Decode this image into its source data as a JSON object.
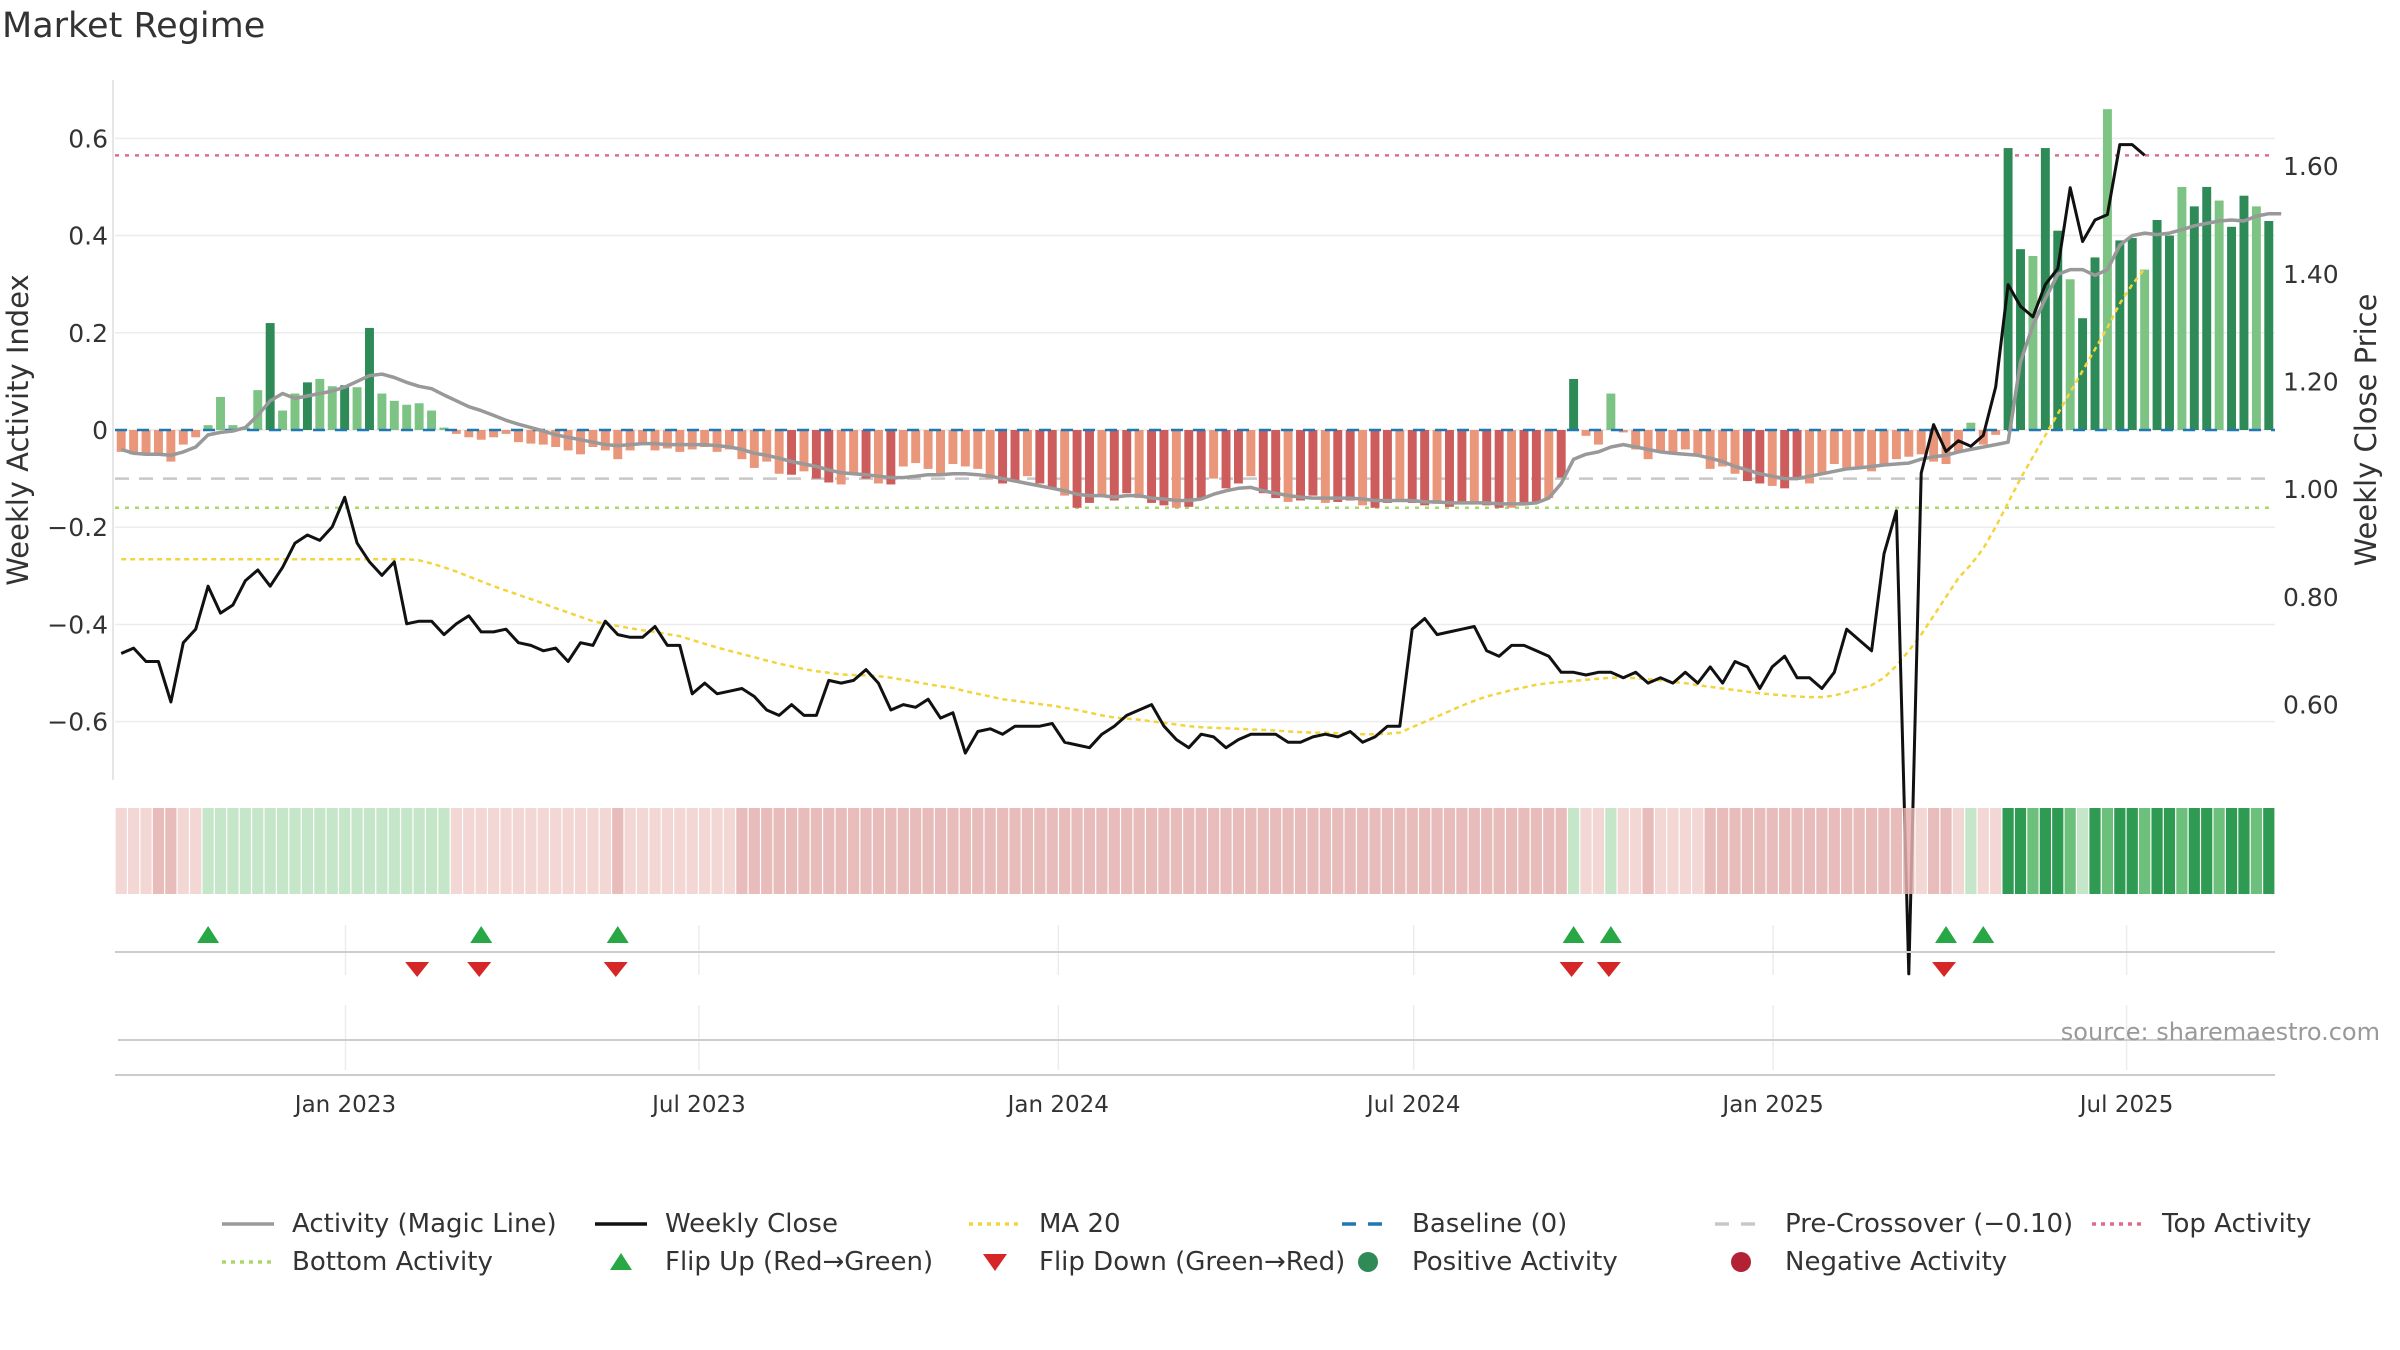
{
  "title": "Market Regime",
  "source": "source: sharemaestro.com",
  "colors": {
    "strong_green": "#2e8b57",
    "light_green": "#7dc383",
    "strong_red": "#cd5c5c",
    "light_red": "#e9967a",
    "magic_line": "#999999",
    "close_line": "#111111",
    "ma_line": "#f2d53c",
    "baseline": "#1f77b4",
    "pre_crossover": "#c8c8c8",
    "top_activity": "#e06c8c",
    "bottom_activity": "#a8d86a",
    "flip_up": "#28a745",
    "flip_down": "#d62728"
  },
  "chart_data": {
    "type": "bar",
    "title": "Market Regime",
    "xlabel": "",
    "ylabel": "Weekly Activity Index",
    "y2label": "Weekly Close Price",
    "ylim": [
      -0.72,
      0.72
    ],
    "y2lim": [
      0.46,
      1.76
    ],
    "yticks": [
      -0.6,
      -0.4,
      -0.2,
      0,
      0.2,
      0.4,
      0.6
    ],
    "ytick_labels": [
      "−0.6",
      "−0.4",
      "−0.2",
      "0",
      "0.2",
      "0.4",
      "0.6"
    ],
    "y2ticks": [
      0.6,
      0.8,
      1.0,
      1.2,
      1.4,
      1.6
    ],
    "y2tick_labels": [
      "0.60",
      "0.80",
      "1.00",
      "1.20",
      "1.40",
      "1.60"
    ],
    "date_range": [
      "2022-09-05",
      "2025-09-15"
    ],
    "xtick_dates": [
      "2023-01-01",
      "2023-07-01",
      "2024-01-01",
      "2024-07-01",
      "2025-01-01",
      "2025-07-01"
    ],
    "xtick_labels": [
      "Jan 2023",
      "Jul 2023",
      "Jan 2024",
      "Jul 2024",
      "Jan 2025",
      "Jul 2025"
    ],
    "top_activity": 0.565,
    "bottom_activity": -0.16,
    "pre_crossover": -0.1,
    "baseline": 0,
    "grid": true,
    "legend_position": "bottom",
    "activity": [
      -0.045,
      -0.05,
      -0.048,
      -0.052,
      -0.065,
      -0.03,
      -0.015,
      0.01,
      0.068,
      0.01,
      0.005,
      0.082,
      0.22,
      0.04,
      0.075,
      0.098,
      0.105,
      0.09,
      0.092,
      0.088,
      0.21,
      0.075,
      0.06,
      0.052,
      0.055,
      0.04,
      0.005,
      -0.008,
      -0.015,
      -0.02,
      -0.015,
      -0.008,
      -0.025,
      -0.028,
      -0.03,
      -0.035,
      -0.042,
      -0.05,
      -0.035,
      -0.042,
      -0.06,
      -0.042,
      -0.03,
      -0.042,
      -0.038,
      -0.045,
      -0.04,
      -0.035,
      -0.045,
      -0.04,
      -0.06,
      -0.078,
      -0.065,
      -0.09,
      -0.092,
      -0.085,
      -0.1,
      -0.108,
      -0.112,
      -0.09,
      -0.1,
      -0.11,
      -0.112,
      -0.075,
      -0.068,
      -0.08,
      -0.09,
      -0.07,
      -0.075,
      -0.08,
      -0.1,
      -0.11,
      -0.105,
      -0.095,
      -0.11,
      -0.12,
      -0.135,
      -0.16,
      -0.15,
      -0.135,
      -0.145,
      -0.13,
      -0.14,
      -0.15,
      -0.155,
      -0.16,
      -0.158,
      -0.14,
      -0.1,
      -0.12,
      -0.11,
      -0.095,
      -0.13,
      -0.14,
      -0.148,
      -0.145,
      -0.135,
      -0.15,
      -0.148,
      -0.145,
      -0.155,
      -0.16,
      -0.15,
      -0.145,
      -0.15,
      -0.155,
      -0.152,
      -0.158,
      -0.15,
      -0.15,
      -0.155,
      -0.16,
      -0.16,
      -0.155,
      -0.15,
      -0.14,
      -0.098,
      0.105,
      -0.012,
      -0.03,
      0.075,
      -0.005,
      -0.04,
      -0.06,
      -0.045,
      -0.048,
      -0.04,
      -0.05,
      -0.08,
      -0.075,
      -0.09,
      -0.105,
      -0.11,
      -0.115,
      -0.12,
      -0.098,
      -0.11,
      -0.088,
      -0.07,
      -0.078,
      -0.08,
      -0.085,
      -0.075,
      -0.06,
      -0.055,
      -0.05,
      -0.065,
      -0.07,
      -0.045,
      0.015,
      -0.03,
      -0.01,
      0.58,
      0.372,
      0.358,
      0.58,
      0.41,
      0.31,
      0.23,
      0.355,
      0.66,
      0.39,
      0.395,
      0.33,
      0.432,
      0.4,
      0.5,
      0.46,
      0.5,
      0.472,
      0.418,
      0.482,
      0.46,
      0.43
    ],
    "magic_line": [
      -0.04,
      -0.048,
      -0.05,
      -0.05,
      -0.052,
      -0.045,
      -0.035,
      -0.01,
      -0.005,
      -0.002,
      0.005,
      0.03,
      0.06,
      0.075,
      0.065,
      0.07,
      0.075,
      0.08,
      0.088,
      0.1,
      0.112,
      0.115,
      0.108,
      0.098,
      0.09,
      0.085,
      0.072,
      0.06,
      0.048,
      0.04,
      0.03,
      0.02,
      0.012,
      0.005,
      -0.002,
      -0.01,
      -0.015,
      -0.02,
      -0.025,
      -0.03,
      -0.032,
      -0.03,
      -0.028,
      -0.028,
      -0.03,
      -0.03,
      -0.03,
      -0.03,
      -0.032,
      -0.035,
      -0.04,
      -0.048,
      -0.052,
      -0.058,
      -0.065,
      -0.07,
      -0.075,
      -0.082,
      -0.088,
      -0.09,
      -0.092,
      -0.095,
      -0.098,
      -0.098,
      -0.095,
      -0.092,
      -0.092,
      -0.09,
      -0.09,
      -0.092,
      -0.095,
      -0.1,
      -0.105,
      -0.11,
      -0.115,
      -0.12,
      -0.125,
      -0.132,
      -0.135,
      -0.135,
      -0.138,
      -0.135,
      -0.135,
      -0.14,
      -0.142,
      -0.145,
      -0.145,
      -0.142,
      -0.132,
      -0.125,
      -0.12,
      -0.118,
      -0.125,
      -0.13,
      -0.135,
      -0.138,
      -0.14,
      -0.14,
      -0.14,
      -0.14,
      -0.142,
      -0.145,
      -0.145,
      -0.145,
      -0.145,
      -0.148,
      -0.148,
      -0.15,
      -0.15,
      -0.15,
      -0.15,
      -0.152,
      -0.152,
      -0.152,
      -0.15,
      -0.14,
      -0.11,
      -0.06,
      -0.05,
      -0.045,
      -0.035,
      -0.03,
      -0.035,
      -0.04,
      -0.045,
      -0.048,
      -0.05,
      -0.052,
      -0.058,
      -0.065,
      -0.075,
      -0.082,
      -0.09,
      -0.095,
      -0.1,
      -0.1,
      -0.095,
      -0.09,
      -0.085,
      -0.08,
      -0.078,
      -0.075,
      -0.072,
      -0.07,
      -0.068,
      -0.06,
      -0.055,
      -0.052,
      -0.045,
      -0.04,
      -0.035,
      -0.03,
      -0.025,
      0.14,
      0.215,
      0.27,
      0.32,
      0.33,
      0.33,
      0.318,
      0.33,
      0.38,
      0.4,
      0.405,
      0.402,
      0.405,
      0.412,
      0.42,
      0.425,
      0.43,
      0.432,
      0.43,
      0.44,
      0.445,
      0.445
    ],
    "weekly_close": [
      0.695,
      0.705,
      0.68,
      0.68,
      0.605,
      0.715,
      0.74,
      0.82,
      0.77,
      0.785,
      0.83,
      0.85,
      0.82,
      0.855,
      0.9,
      0.915,
      0.905,
      0.93,
      0.985,
      0.9,
      0.865,
      0.84,
      0.865,
      0.75,
      0.755,
      0.755,
      0.73,
      0.75,
      0.765,
      0.735,
      0.735,
      0.74,
      0.715,
      0.71,
      0.7,
      0.705,
      0.68,
      0.715,
      0.71,
      0.755,
      0.73,
      0.725,
      0.725,
      0.745,
      0.71,
      0.71,
      0.62,
      0.64,
      0.62,
      0.625,
      0.63,
      0.615,
      0.59,
      0.58,
      0.6,
      0.58,
      0.58,
      0.645,
      0.64,
      0.645,
      0.665,
      0.64,
      0.59,
      0.6,
      0.595,
      0.61,
      0.575,
      0.585,
      0.51,
      0.55,
      0.555,
      0.545,
      0.56,
      0.56,
      0.56,
      0.565,
      0.53,
      0.525,
      0.52,
      0.545,
      0.56,
      0.58,
      0.59,
      0.6,
      0.56,
      0.535,
      0.52,
      0.545,
      0.54,
      0.52,
      0.535,
      0.545,
      0.545,
      0.545,
      0.53,
      0.53,
      0.54,
      0.545,
      0.54,
      0.55,
      0.53,
      0.54,
      0.56,
      0.56,
      0.74,
      0.76,
      0.73,
      0.735,
      0.74,
      0.745,
      0.7,
      0.69,
      0.71,
      0.71,
      0.7,
      0.69,
      0.66,
      0.66,
      0.655,
      0.66,
      0.66,
      0.65,
      0.66,
      0.64,
      0.65,
      0.64,
      0.66,
      0.64,
      0.67,
      0.64,
      0.68,
      0.67,
      0.63,
      0.67,
      0.69,
      0.65,
      0.65,
      0.63,
      0.66,
      0.74,
      0.72,
      0.7,
      0.88,
      0.96,
      0.1,
      1.03,
      1.12,
      1.07,
      1.09,
      1.08,
      1.1,
      1.19,
      1.38,
      1.34,
      1.32,
      1.38,
      1.41,
      1.56,
      1.46,
      1.5,
      1.51,
      1.64,
      1.64,
      1.62
    ],
    "ma20": [
      0.87,
      0.87,
      0.87,
      0.87,
      0.87,
      0.87,
      0.87,
      0.87,
      0.87,
      0.87,
      0.87,
      0.87,
      0.87,
      0.87,
      0.87,
      0.87,
      0.87,
      0.87,
      0.87,
      0.87,
      0.87,
      0.87,
      0.87,
      0.87,
      0.868,
      0.862,
      0.855,
      0.847,
      0.838,
      0.829,
      0.82,
      0.812,
      0.804,
      0.796,
      0.788,
      0.779,
      0.771,
      0.763,
      0.755,
      0.75,
      0.746,
      0.742,
      0.738,
      0.735,
      0.731,
      0.727,
      0.72,
      0.713,
      0.706,
      0.7,
      0.694,
      0.688,
      0.682,
      0.676,
      0.671,
      0.666,
      0.662,
      0.659,
      0.656,
      0.655,
      0.654,
      0.653,
      0.65,
      0.646,
      0.642,
      0.638,
      0.634,
      0.631,
      0.625,
      0.62,
      0.615,
      0.61,
      0.607,
      0.604,
      0.601,
      0.598,
      0.594,
      0.59,
      0.585,
      0.58,
      0.576,
      0.574,
      0.572,
      0.569,
      0.566,
      0.563,
      0.56,
      0.558,
      0.557,
      0.556,
      0.555,
      0.554,
      0.553,
      0.552,
      0.55,
      0.549,
      0.548,
      0.548,
      0.547,
      0.546,
      0.545,
      0.545,
      0.546,
      0.548,
      0.558,
      0.568,
      0.578,
      0.588,
      0.598,
      0.607,
      0.615,
      0.621,
      0.627,
      0.632,
      0.637,
      0.64,
      0.642,
      0.644,
      0.646,
      0.648,
      0.65,
      0.65,
      0.649,
      0.647,
      0.645,
      0.642,
      0.64,
      0.636,
      0.633,
      0.63,
      0.627,
      0.624,
      0.621,
      0.619,
      0.617,
      0.615,
      0.614,
      0.614,
      0.617,
      0.623,
      0.63,
      0.636,
      0.65,
      0.672,
      0.7,
      0.73,
      0.765,
      0.8,
      0.835,
      0.86,
      0.89,
      0.93,
      0.975,
      1.02,
      1.06,
      1.1,
      1.14,
      1.18,
      1.22,
      1.26,
      1.3,
      1.345,
      1.38,
      1.41
    ],
    "flip_up_weeks": [
      7,
      29,
      40,
      117,
      120,
      147,
      150
    ],
    "flip_down_weeks": [
      24,
      29,
      40,
      117,
      120,
      147
    ],
    "flip_up_dates": [
      "2022-10-24",
      "2023-03-27",
      "2023-06-12",
      "2024-12-02",
      "2024-12-23",
      "2025-07-07",
      "2025-07-28"
    ],
    "flip_down_dates": [
      "2023-02-20",
      "2023-03-27",
      "2023-06-12",
      "2024-12-02",
      "2024-12-23",
      "2025-07-07"
    ]
  },
  "legend": [
    {
      "label": "Activity (Magic Line)",
      "symbol": "line",
      "color": "#999999"
    },
    {
      "label": "Weekly Close",
      "symbol": "line",
      "color": "#111111"
    },
    {
      "label": "MA 20",
      "symbol": "dotted",
      "color": "#f2d53c"
    },
    {
      "label": "Baseline (0)",
      "symbol": "dashed",
      "color": "#1f77b4"
    },
    {
      "label": "Pre-Crossover (−0.10)",
      "symbol": "dashed",
      "color": "#c8c8c8"
    },
    {
      "label": "Top Activity",
      "symbol": "dotted",
      "color": "#e06c8c"
    },
    {
      "label": "Bottom Activity",
      "symbol": "dotted",
      "color": "#a8d86a"
    },
    {
      "label": "Flip Up (Red→Green)",
      "symbol": "triangle-up",
      "color": "#28a745"
    },
    {
      "label": "Flip Down (Green→Red)",
      "symbol": "triangle-down",
      "color": "#d62728"
    },
    {
      "label": "Positive Activity",
      "symbol": "circle",
      "color": "#2e8b57"
    },
    {
      "label": "Negative Activity",
      "symbol": "circle",
      "color": "#b22234"
    }
  ]
}
